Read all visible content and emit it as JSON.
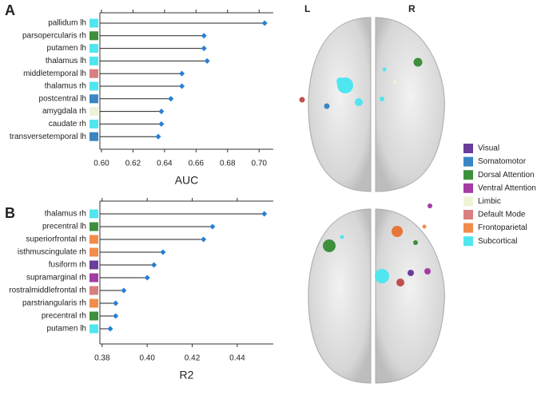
{
  "panel_labels": [
    "A",
    "B"
  ],
  "brain_labels": {
    "left": "L",
    "right": "R"
  },
  "network_legend": [
    {
      "name": "Visual",
      "color": "#6a3d9a"
    },
    {
      "name": "Somatomotor",
      "color": "#3a85c2"
    },
    {
      "name": "Dorsal Attention",
      "color": "#3d8f3d"
    },
    {
      "name": "Ventral Attention",
      "color": "#a43ca4"
    },
    {
      "name": "Limbic",
      "color": "#eef3d8"
    },
    {
      "name": "Default Mode",
      "color": "#d87f7f"
    },
    {
      "name": "Frontoparietal",
      "color": "#f28c4a"
    },
    {
      "name": "Subcortical",
      "color": "#4fe6f0"
    }
  ],
  "chart_data": [
    {
      "type": "lollipop",
      "xlabel": "AUC",
      "categories": [
        "pallidum lh",
        "parsopercularis rh",
        "putamen lh",
        "thalamus lh",
        "middletemporal lh",
        "thalamus rh",
        "postcentral lh",
        "amygdala rh",
        "caudate rh",
        "transversetemporal lh"
      ],
      "values": [
        0.7035,
        0.665,
        0.665,
        0.667,
        0.651,
        0.651,
        0.644,
        0.638,
        0.638,
        0.636
      ],
      "colors": [
        "#4fe6f0",
        "#3d8f3d",
        "#4fe6f0",
        "#4fe6f0",
        "#d87f7f",
        "#4fe6f0",
        "#3a85c2",
        "#eef3d8",
        "#4fe6f0",
        "#3a85c2"
      ],
      "marker_color": "#2a7fd4",
      "xlim": [
        0.599,
        0.709
      ],
      "xticks": [
        {
          "value": 0.6,
          "label": "0.60"
        },
        0.62,
        0.64,
        0.66,
        0.68,
        {
          "value": 0.7,
          "label": "0.70"
        }
      ]
    },
    {
      "type": "lollipop",
      "xlabel": "R2",
      "categories": [
        "thalamus rh",
        "precentral lh",
        "superiorfrontal rh",
        "isthmuscingulate rh",
        "fusiform rh",
        "supramarginal rh",
        "rostralmiddlefrontal rh",
        "parstriangularis rh",
        "precentral rh",
        "putamen lh"
      ],
      "values": [
        0.452,
        0.429,
        0.425,
        0.407,
        0.403,
        0.4,
        0.3896,
        0.386,
        0.386,
        0.3836
      ],
      "colors": [
        "#4fe6f0",
        "#3d8f3d",
        "#f28c4a",
        "#f28c4a",
        "#6a3d9a",
        "#a43ca4",
        "#d87f7f",
        "#f28c4a",
        "#3d8f3d",
        "#4fe6f0"
      ],
      "marker_color": "#2a7fd4",
      "xlim": [
        0.379,
        0.456
      ],
      "xticks": [
        0.38,
        {
          "value": 0.4,
          "label": "0.40"
        },
        0.42,
        0.44
      ]
    }
  ]
}
